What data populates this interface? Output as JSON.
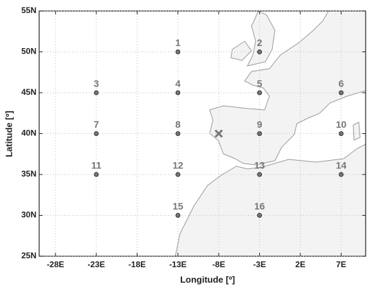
{
  "chart_data": {
    "type": "scatter",
    "x_label": "Longitude [º]",
    "y_label": "Latitude [º]",
    "xlim": [
      -30,
      10
    ],
    "ylim": [
      25,
      55
    ],
    "xticks": [
      {
        "value": -28,
        "label": "-28E"
      },
      {
        "value": -23,
        "label": "-23E"
      },
      {
        "value": -18,
        "label": "-18E"
      },
      {
        "value": -13,
        "label": "-13E"
      },
      {
        "value": -8,
        "label": "-8E"
      },
      {
        "value": -3,
        "label": "-3E"
      },
      {
        "value": 2,
        "label": "2E"
      },
      {
        "value": 7,
        "label": "7E"
      }
    ],
    "yticks": [
      {
        "value": 25,
        "label": "25N"
      },
      {
        "value": 30,
        "label": "30N"
      },
      {
        "value": 35,
        "label": "35N"
      },
      {
        "value": 40,
        "label": "40N"
      },
      {
        "value": 45,
        "label": "45N"
      },
      {
        "value": 50,
        "label": "50N"
      },
      {
        "value": 55,
        "label": "55N"
      }
    ],
    "grid": true,
    "points": {
      "labels": [
        "1",
        "2",
        "3",
        "4",
        "5",
        "6",
        "7",
        "8",
        "9",
        "10",
        "11",
        "12",
        "13",
        "14",
        "15",
        "16"
      ],
      "x": [
        -13,
        -3,
        -23,
        -13,
        -3,
        7,
        -23,
        -13,
        -3,
        7,
        -23,
        -13,
        -3,
        7,
        -13,
        -3
      ],
      "y": [
        50,
        50,
        45,
        45,
        45,
        45,
        40,
        40,
        40,
        40,
        35,
        35,
        35,
        35,
        30,
        30
      ],
      "color": "#777777"
    },
    "cross": {
      "x": -8,
      "y": 40,
      "color": "#777777"
    }
  }
}
